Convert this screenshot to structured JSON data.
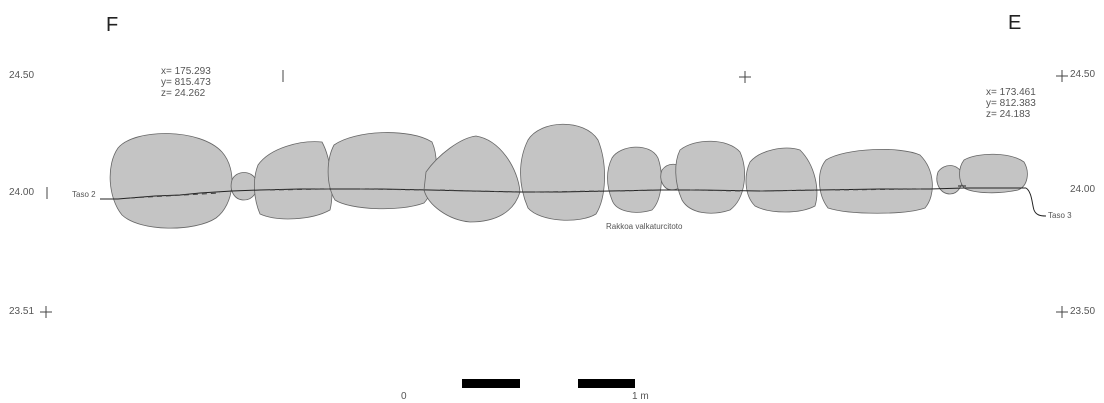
{
  "labels": {
    "left_letter": "F",
    "right_letter": "E"
  },
  "elevations": {
    "left_top": "24.50",
    "left_mid": "24.00",
    "left_bottom": "23.51",
    "right_top": "24.50",
    "right_mid": "24.00",
    "right_bottom": "23.50"
  },
  "coordinates": {
    "left": {
      "x": "x= 175.293",
      "y": "y= 815.473",
      "z": "z= 24.262"
    },
    "right": {
      "x": "x= 173.461",
      "y": "y= 812.383",
      "z": "z= 24.183"
    }
  },
  "annotations": {
    "left_layer": "Taso 2",
    "right_layer": "Taso 3",
    "center_note": "Rakkoa valkaturcitoto"
  },
  "scale": {
    "start_label": "0",
    "end_label": "1 m"
  },
  "colors": {
    "stone_fill": "#c4c4c4",
    "stone_outline": "#555555",
    "line": "#333333"
  }
}
